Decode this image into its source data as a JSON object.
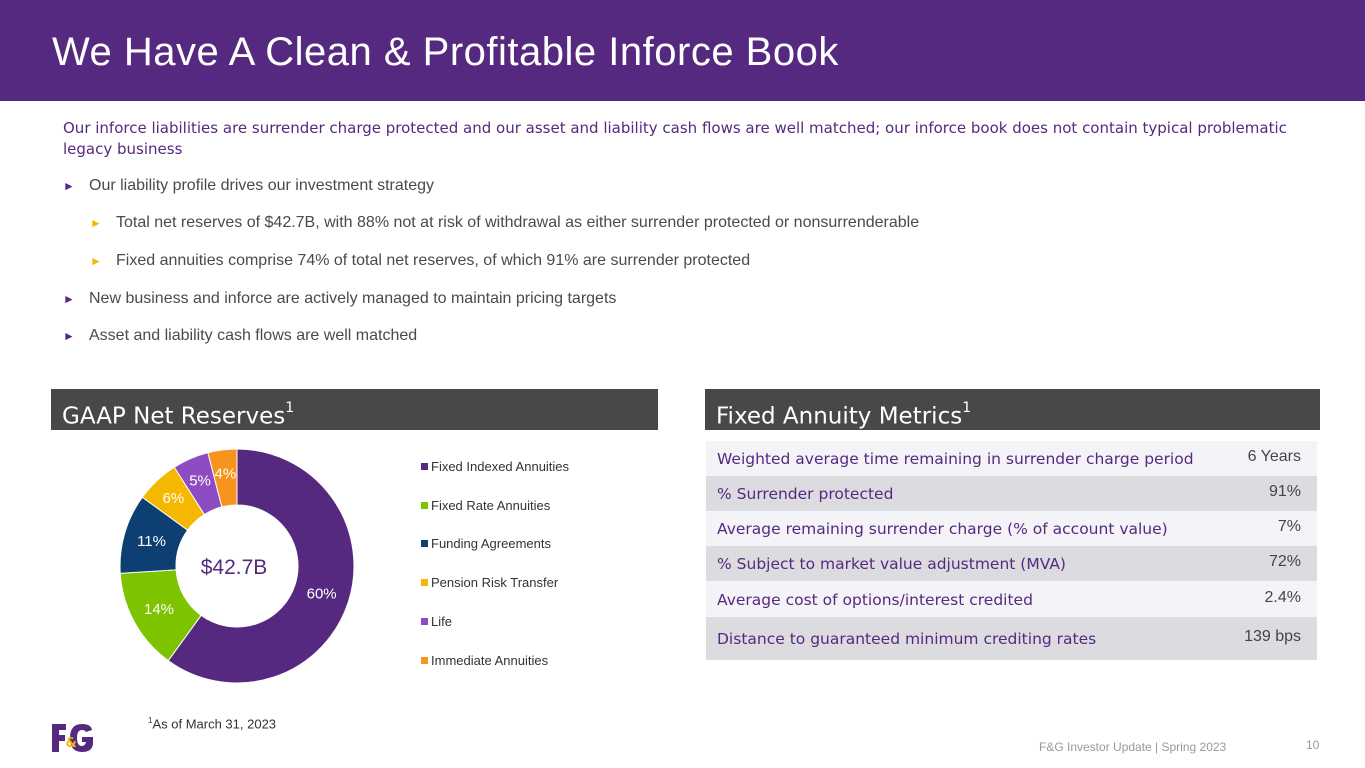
{
  "header": {
    "title": "We Have A Clean & Profitable Inforce Book"
  },
  "intro": "Our inforce liabilities are surrender charge protected and our asset and liability cash flows are well matched; our inforce book does not contain typical problematic legacy business",
  "bullets": [
    {
      "text": "Our liability profile drives our investment strategy"
    },
    {
      "text": "Total net reserves of $42.7B, with 88% not at risk of withdrawal as either surrender protected or nonsurrenderable"
    },
    {
      "text": "Fixed annuities comprise 74% of total net reserves, of which 91% are surrender protected"
    },
    {
      "text": "New business and inforce are actively managed to maintain pricing targets"
    },
    {
      "text": "Asset and liability cash flows are well matched"
    }
  ],
  "reserves_panel": {
    "title": "GAAP Net Reserves",
    "sup": "1"
  },
  "metrics_panel": {
    "title": "Fixed Annuity Metrics",
    "sup": "1"
  },
  "chart_data": {
    "type": "pie",
    "variant": "donut",
    "center_label": "$42.7B",
    "categories": [
      "Fixed Indexed Annuities",
      "Fixed Rate Annuities",
      "Funding Agreements",
      "Pension Risk Transfer",
      "Life",
      "Immediate Annuities"
    ],
    "values": [
      60,
      14,
      11,
      6,
      5,
      4
    ],
    "data_labels": [
      "60%",
      "14%",
      "11%",
      "6%",
      "5%",
      "4%"
    ],
    "colors": [
      "#55297f",
      "#7dc300",
      "#0d3f73",
      "#f5b800",
      "#8e4cc2",
      "#f7941d"
    ],
    "legend_placement": "right"
  },
  "metrics": [
    {
      "label": "Weighted average time remaining in surrender charge period",
      "value": "6 Years"
    },
    {
      "label": "% Surrender protected",
      "value": "91%"
    },
    {
      "label": "Average remaining surrender charge (% of account value)",
      "value": "7%"
    },
    {
      "label": "% Subject to market value adjustment (MVA)",
      "value": "72%"
    },
    {
      "label": "Average cost of options/interest credited",
      "value": "2.4%"
    },
    {
      "label": "Distance to guaranteed minimum crediting rates",
      "value": "139 bps"
    }
  ],
  "metrics_row_colors": [
    "#f4f3f8",
    "#dcdce0"
  ],
  "footnote": {
    "sup": "1",
    "text": "As of March 31, 2023"
  },
  "logo_text": "F&G",
  "footer": {
    "text": "F&G Investor Update | Spring 2023",
    "page": "10"
  },
  "colors": {
    "brand_purple": "#55297f",
    "panel_header": "#48484a",
    "accent_yellow": "#f5b800"
  }
}
